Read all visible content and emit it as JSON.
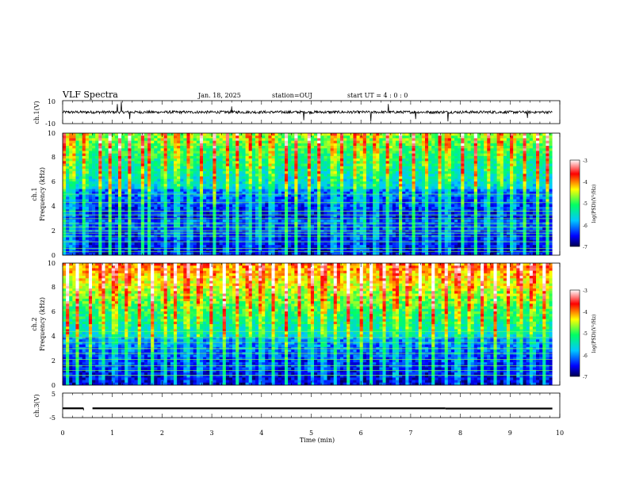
{
  "header": {
    "title": "VLF Spectra",
    "date": "Jan. 18, 2025",
    "station": "station=OUJ",
    "start_ut": "start  UT =  4 : 0  : 0"
  },
  "panels": {
    "ch1_waveform": {
      "ylabel": "ch.1(V)",
      "ytick_labels": [
        "10",
        "-10"
      ]
    },
    "ch1_spectrogram": {
      "ylabel": [
        "ch.1",
        "Frequency (kHz)"
      ],
      "ytick_labels": [
        "0",
        "2",
        "4",
        "6",
        "8",
        "10"
      ]
    },
    "ch2_spectrogram": {
      "ylabel": [
        "ch.2",
        "Frequency (kHz)"
      ],
      "ytick_labels": [
        "0",
        "2",
        "4",
        "6",
        "8",
        "10"
      ]
    },
    "ch3_waveform": {
      "ylabel": "ch.3(V)",
      "ytick_labels": [
        "5",
        "-5"
      ]
    }
  },
  "xaxis": {
    "label": "Time (min)",
    "tick_labels": [
      "0",
      "1",
      "2",
      "3",
      "4",
      "5",
      "6",
      "7",
      "8",
      "9",
      "10"
    ]
  },
  "colorbar": {
    "label": "log(PSD)(V²/Hz)",
    "tick_labels": [
      "-3",
      "-4",
      "-5",
      "-6",
      "-7"
    ]
  },
  "colors": {
    "scale": [
      "#000050",
      "#0000ff",
      "#00c8ff",
      "#00ff64",
      "#ffff00",
      "#ff0000",
      "#ffffff"
    ],
    "background": "#ffffff",
    "axes": "#000000"
  },
  "chart_data": [
    {
      "type": "line",
      "name_hint": "ch.1 waveform",
      "xlim": [
        0,
        10
      ],
      "ylim": [
        -10,
        10
      ],
      "baseline": 0,
      "x_end": 9.85,
      "spikes": [
        {
          "x": 1.1,
          "y": 7
        },
        {
          "x": 1.18,
          "y": 9
        },
        {
          "x": 1.35,
          "y": -6
        },
        {
          "x": 3.4,
          "y": 5
        },
        {
          "x": 4.85,
          "y": -7
        },
        {
          "x": 6.2,
          "y": -8
        },
        {
          "x": 6.55,
          "y": 7
        },
        {
          "x": 7.1,
          "y": -6
        },
        {
          "x": 7.75,
          "y": -8
        },
        {
          "x": 9.35,
          "y": -5
        }
      ],
      "noise_amplitude": 1.2
    },
    {
      "type": "heatmap",
      "name_hint": "ch.1 spectrogram",
      "xlim": [
        0,
        10
      ],
      "ylim": [
        0,
        10
      ],
      "x_end": 9.85,
      "zlim": [
        -7,
        -3
      ],
      "zlabel": "log(PSD)(V²/Hz)",
      "background_high_freq": -4.7,
      "background_low_freq": -6.6,
      "dark_band_khz": [
        3,
        5.5
      ],
      "line_freqs_khz": [
        0.3,
        0.55,
        1.1,
        1.55,
        1.8,
        2.0,
        2.3,
        2.6,
        3.0,
        3.3,
        3.6,
        4.3,
        5.0
      ],
      "bursts_min": [
        0.05,
        0.2,
        0.45,
        0.75,
        0.95,
        1.15,
        1.35,
        1.6,
        1.75,
        2.05,
        2.3,
        2.55,
        2.8,
        3.05,
        3.3,
        3.5,
        3.75,
        3.95,
        4.2,
        4.5,
        4.7,
        4.95,
        5.15,
        5.45,
        5.6,
        5.9,
        6.05,
        6.3,
        6.55,
        6.8,
        7.05,
        7.3,
        7.6,
        7.75,
        8.05,
        8.3,
        8.55,
        8.8,
        9.05,
        9.3,
        9.55,
        9.75
      ]
    },
    {
      "type": "heatmap",
      "name_hint": "ch.2 spectrogram",
      "xlim": [
        0,
        10
      ],
      "ylim": [
        0,
        10
      ],
      "x_end": 9.85,
      "zlim": [
        -7,
        -3
      ],
      "zlabel": "log(PSD)(V²/Hz)",
      "background_high_freq": -4.0,
      "background_low_freq": -6.3,
      "dark_band_khz": [
        0,
        4
      ],
      "line_freqs_khz": [
        0.8,
        1.2,
        1.6,
        2.1,
        2.6,
        3.0,
        3.5,
        3.9,
        4.4
      ],
      "bursts_min": [
        0.1,
        0.3,
        0.55,
        0.8,
        1.05,
        1.3,
        1.55,
        1.8,
        2.05,
        2.25,
        2.5,
        2.75,
        3.0,
        3.25,
        3.5,
        3.75,
        4.0,
        4.25,
        4.5,
        4.75,
        5.0,
        5.25,
        5.5,
        5.75,
        6.0,
        6.2,
        6.45,
        6.7,
        6.95,
        7.2,
        7.45,
        7.7,
        7.95,
        8.2,
        8.45,
        8.7,
        8.95,
        9.2,
        9.45,
        9.7
      ]
    },
    {
      "type": "line",
      "name_hint": "ch.3 waveform",
      "xlim": [
        0,
        10
      ],
      "ylim": [
        -5,
        5
      ],
      "segments": [
        {
          "x": [
            0,
            0.42
          ],
          "y": -1.2
        },
        {
          "x": 0.42,
          "y": -2
        },
        {
          "x": [
            0.6,
            7.7
          ],
          "y": -1.2
        },
        {
          "x": [
            7.7,
            9.85
          ],
          "y": -1.3
        }
      ]
    }
  ]
}
